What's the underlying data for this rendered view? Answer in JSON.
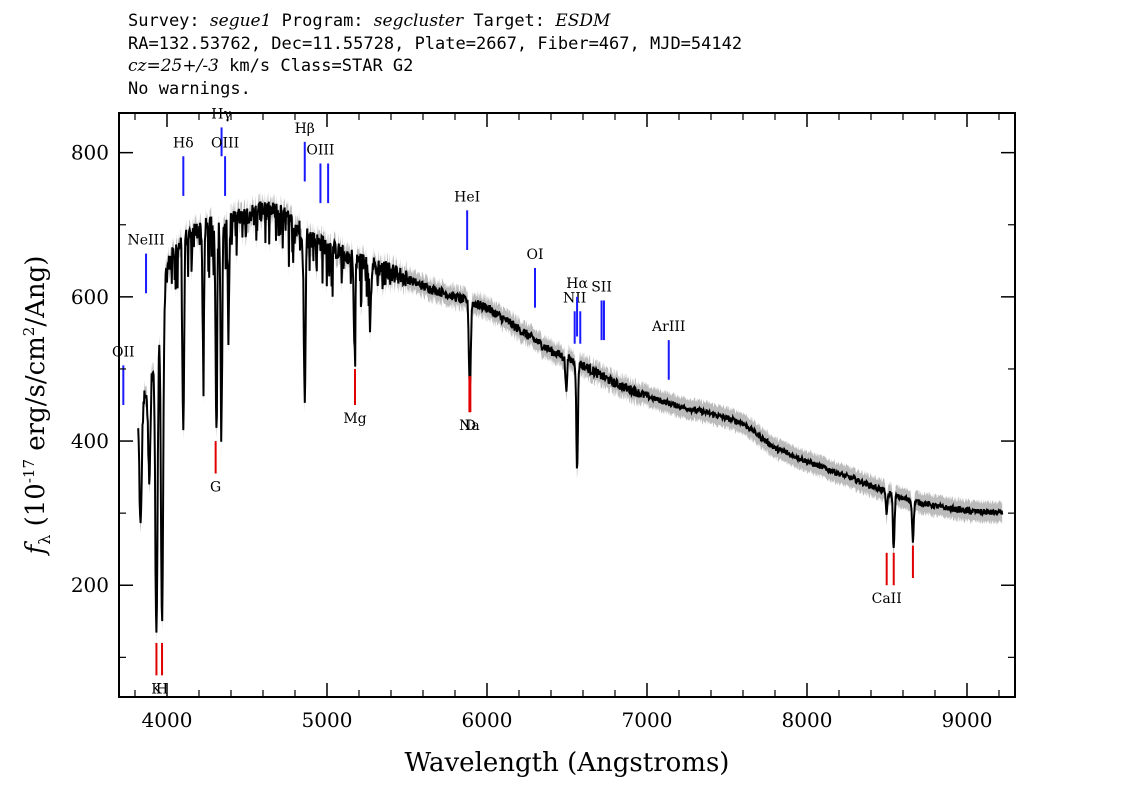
{
  "header": {
    "survey_label": "Survey:",
    "survey": "segue1",
    "program_label": "Program:",
    "program": "segcluster",
    "target_label": "Target:",
    "target": "ESDM",
    "coords": "RA=132.53762, Dec=11.55728, Plate=2667, Fiber=467, MJD=54142",
    "cz": "cz=25+/-3",
    "cz_units": "km/s",
    "class": "Class=STAR G2",
    "warnings": "No warnings."
  },
  "chart_data": {
    "type": "line",
    "xlabel": "Wavelength (Angstroms)",
    "ylabel": "f_λ (10^-17 erg/s/cm^2/Ang)",
    "xlim": [
      3700,
      9300
    ],
    "ylim": [
      45,
      855
    ],
    "x_ticks": [
      4000,
      5000,
      6000,
      7000,
      8000,
      9000
    ],
    "y_ticks": [
      200,
      400,
      600,
      800
    ],
    "grid": false,
    "colors": {
      "flux": "#000000",
      "error_band": "#bbbbbb",
      "emission": "#1a1aff",
      "absorption": "#e00000"
    },
    "series": [
      {
        "continuum": [
          [
            3820,
            430
          ],
          [
            3900,
            490
          ],
          [
            3950,
            560
          ],
          [
            4000,
            640
          ],
          [
            4050,
            665
          ],
          [
            4100,
            680
          ],
          [
            4200,
            695
          ],
          [
            4300,
            700
          ],
          [
            4400,
            705
          ],
          [
            4500,
            715
          ],
          [
            4600,
            720
          ],
          [
            4700,
            718
          ],
          [
            4800,
            700
          ],
          [
            4900,
            680
          ],
          [
            5000,
            670
          ],
          [
            5100,
            660
          ],
          [
            5200,
            650
          ],
          [
            5400,
            635
          ],
          [
            5600,
            615
          ],
          [
            5800,
            600
          ],
          [
            6000,
            585
          ],
          [
            6200,
            555
          ],
          [
            6400,
            525
          ],
          [
            6600,
            505
          ],
          [
            6800,
            480
          ],
          [
            7000,
            462
          ],
          [
            7200,
            448
          ],
          [
            7400,
            438
          ],
          [
            7600,
            425
          ],
          [
            7800,
            390
          ],
          [
            8000,
            372
          ],
          [
            8200,
            355
          ],
          [
            8400,
            338
          ],
          [
            8600,
            320
          ],
          [
            8800,
            310
          ],
          [
            9000,
            303
          ],
          [
            9220,
            300
          ]
        ],
        "absorption_dips": [
          [
            3835,
            280
          ],
          [
            3889,
            350
          ],
          [
            3934,
            130
          ],
          [
            3969,
            155
          ],
          [
            4102,
            410
          ],
          [
            4227,
            520
          ],
          [
            4308,
            420
          ],
          [
            4340,
            425
          ],
          [
            4384,
            560
          ],
          [
            4861,
            450
          ],
          [
            5172,
            525
          ],
          [
            5270,
            560
          ],
          [
            5890,
            520
          ],
          [
            5896,
            525
          ],
          [
            6495,
            470
          ],
          [
            6563,
            360
          ],
          [
            8498,
            300
          ],
          [
            8542,
            250
          ],
          [
            8662,
            262
          ]
        ]
      }
    ],
    "emission_lines": [
      {
        "label": "OII",
        "x": 3727,
        "y": [
          505,
          450
        ]
      },
      {
        "label": "NeIII",
        "x": 3869,
        "y": [
          660,
          605
        ]
      },
      {
        "label": "Hδ",
        "x": 4102,
        "y": [
          795,
          740
        ]
      },
      {
        "label": "Hγ",
        "x": 4341,
        "y": [
          835,
          795
        ]
      },
      {
        "label": "OIII",
        "x": 4363,
        "y": [
          795,
          740
        ]
      },
      {
        "label": "Hβ",
        "x": 4861,
        "y": [
          815,
          760
        ]
      },
      {
        "label": "OIII",
        "x": 4959,
        "y": [
          785,
          730
        ]
      },
      {
        "label": "",
        "x": 5007,
        "y": [
          785,
          730
        ]
      },
      {
        "label": "HeI",
        "x": 5876,
        "y": [
          720,
          665
        ]
      },
      {
        "label": "OI",
        "x": 6300,
        "y": [
          640,
          585
        ]
      },
      {
        "label": "NII",
        "x": 6548,
        "y": [
          580,
          535
        ]
      },
      {
        "label": "Hα",
        "x": 6563,
        "y": [
          600,
          545
        ]
      },
      {
        "label": "",
        "x": 6583,
        "y": [
          580,
          535
        ]
      },
      {
        "label": "NII",
        "x": 6584,
        "y": [
          0,
          0
        ]
      },
      {
        "label": "SII",
        "x": 6716,
        "y": [
          595,
          540
        ]
      },
      {
        "label": "",
        "x": 6731,
        "y": [
          595,
          540
        ]
      },
      {
        "label": "ArIII",
        "x": 7136,
        "y": [
          540,
          485
        ]
      }
    ],
    "absorption_lines": [
      {
        "label": "K",
        "x": 3934,
        "y": [
          120,
          75
        ]
      },
      {
        "label": "H",
        "x": 3969,
        "y": [
          120,
          75
        ]
      },
      {
        "label": "G",
        "x": 4304,
        "y": [
          400,
          355
        ]
      },
      {
        "label": "Mg",
        "x": 5175,
        "y": [
          500,
          450
        ]
      },
      {
        "label": "Na",
        "x": 5890,
        "y": [
          490,
          440
        ]
      },
      {
        "label": "D",
        "x": 5896,
        "y": [
          490,
          440
        ]
      },
      {
        "label": "CaII",
        "x": 8498,
        "y": [
          245,
          200
        ]
      },
      {
        "label": "",
        "x": 8542,
        "y": [
          245,
          200
        ]
      },
      {
        "label": "",
        "x": 8662,
        "y": [
          255,
          210
        ]
      }
    ]
  }
}
